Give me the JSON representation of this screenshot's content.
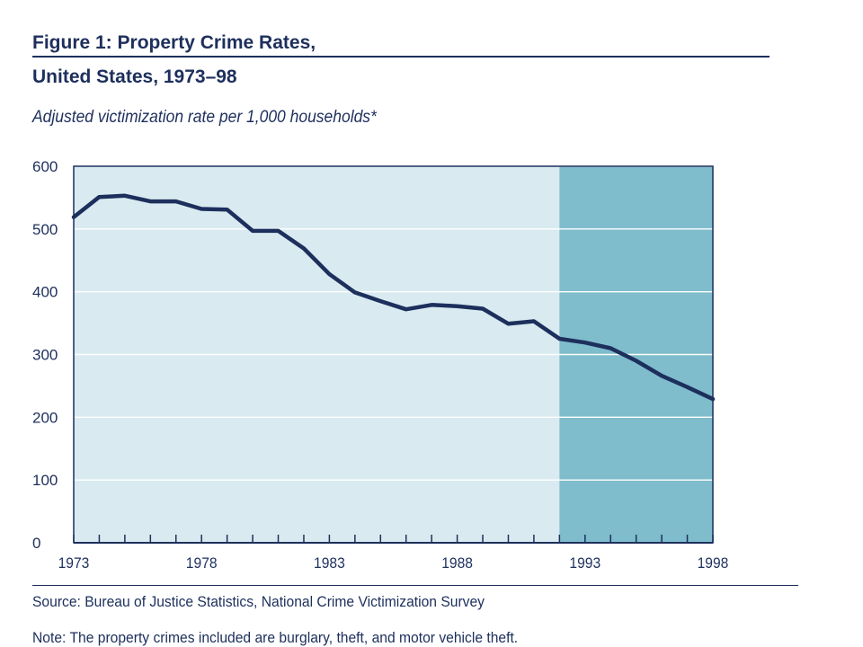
{
  "figure": {
    "title_line1": "Figure 1: Property Crime Rates,",
    "title_line2": "United States, 1973–98",
    "subtitle": "Adjusted victimization rate per 1,000 households*",
    "source": "Source: Bureau of Justice Statistics, National Crime Victimization Survey",
    "note": "Note: The property crimes included are burglary, theft, and motor vehicle theft."
  },
  "colors": {
    "text": "#1d2f5c",
    "line": "#1d2f5c",
    "plot_bg_light": "#d9ebf0",
    "plot_bg_dark": "#7fbccc",
    "gridline": "#ffffff",
    "axis": "#1d2f5c"
  },
  "chart_data": {
    "type": "line",
    "title": "",
    "xlabel": "",
    "ylabel": "",
    "x": [
      1973,
      1974,
      1975,
      1976,
      1977,
      1978,
      1979,
      1980,
      1981,
      1982,
      1983,
      1984,
      1985,
      1986,
      1987,
      1988,
      1989,
      1990,
      1991,
      1992,
      1993,
      1994,
      1995,
      1996,
      1997,
      1998
    ],
    "series": [
      {
        "values": [
          519,
          551,
          553,
          544,
          544,
          532,
          531,
          497,
          497,
          469,
          428,
          399,
          385,
          372,
          379,
          377,
          373,
          349,
          353,
          325,
          319,
          310,
          290,
          266,
          248,
          229
        ]
      }
    ],
    "xlim": [
      1973,
      1998
    ],
    "ylim": [
      0,
      600
    ],
    "x_ticks": [
      1973,
      1974,
      1975,
      1976,
      1977,
      1978,
      1979,
      1980,
      1981,
      1982,
      1983,
      1984,
      1985,
      1986,
      1987,
      1988,
      1989,
      1990,
      1991,
      1992,
      1993,
      1994,
      1995,
      1996,
      1997,
      1998
    ],
    "x_tick_labels": [
      "1973",
      "1978",
      "1983",
      "1988",
      "1993",
      "1998"
    ],
    "y_ticks": [
      0,
      100,
      200,
      300,
      400,
      500,
      600
    ],
    "y_tick_labels": [
      "0",
      "100",
      "200",
      "300",
      "400",
      "500",
      "600"
    ],
    "grid": true,
    "shaded_region": {
      "x_start": 1992,
      "x_end": 1998
    }
  }
}
